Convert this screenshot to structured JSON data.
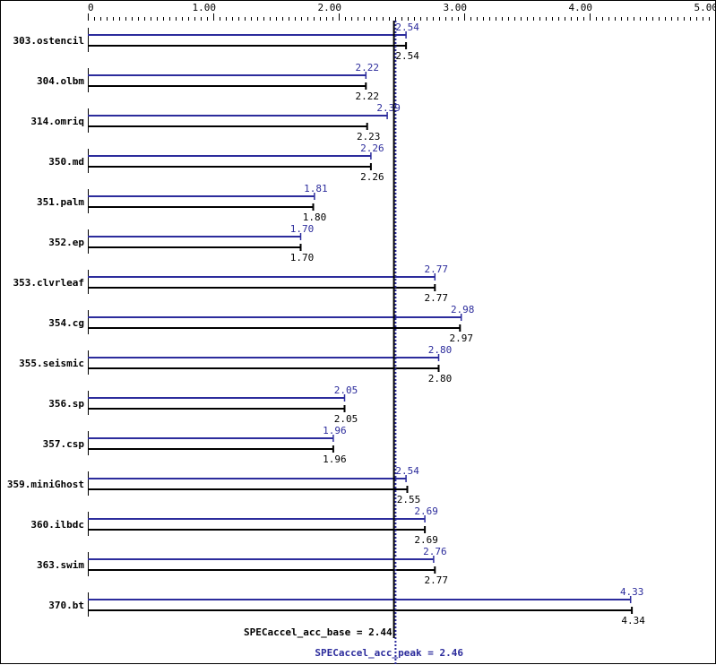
{
  "chart_data": {
    "type": "bar",
    "orientation": "horizontal",
    "title": "",
    "xlabel": "",
    "ylabel": "",
    "xlim": [
      0,
      5.0
    ],
    "x_ticks": [
      "0",
      "1.00",
      "2.00",
      "3.00",
      "4.00",
      "5.00"
    ],
    "x_tick_values": [
      0,
      1,
      2,
      3,
      4,
      5
    ],
    "grid": false,
    "categories": [
      "303.ostencil",
      "304.olbm",
      "314.omriq",
      "350.md",
      "351.palm",
      "352.ep",
      "353.clvrleaf",
      "354.cg",
      "355.seismic",
      "356.sp",
      "357.csp",
      "359.miniGhost",
      "360.ilbdc",
      "363.swim",
      "370.bt"
    ],
    "series": [
      {
        "name": "peak",
        "color": "#2c2c9c",
        "values": [
          2.54,
          2.22,
          2.39,
          2.26,
          1.81,
          1.7,
          2.77,
          2.98,
          2.8,
          2.05,
          1.96,
          2.54,
          2.69,
          2.76,
          4.33
        ],
        "labels": [
          "2.54",
          "2.22",
          "2.39",
          "2.26",
          "1.81",
          "1.70",
          "2.77",
          "2.98",
          "2.80",
          "2.05",
          "1.96",
          "2.54",
          "2.69",
          "2.76",
          "4.33"
        ]
      },
      {
        "name": "base",
        "color": "#000000",
        "values": [
          2.54,
          2.22,
          2.23,
          2.26,
          1.8,
          1.7,
          2.77,
          2.97,
          2.8,
          2.05,
          1.96,
          2.55,
          2.69,
          2.77,
          4.34
        ],
        "labels": [
          "2.54",
          "2.22",
          "2.23",
          "2.26",
          "1.80",
          "1.70",
          "2.77",
          "2.97",
          "2.80",
          "2.05",
          "1.96",
          "2.55",
          "2.69",
          "2.77",
          "4.34"
        ]
      }
    ],
    "reference_lines": [
      {
        "name": "SPECaccel_acc_base",
        "value": 2.44,
        "style": "solid",
        "color": "#000000",
        "label": "SPECaccel_acc_base = 2.44"
      },
      {
        "name": "SPECaccel_acc_peak",
        "value": 2.46,
        "style": "dotted",
        "color": "#2c2c9c",
        "label": "SPECaccel_acc_peak = 2.46"
      }
    ],
    "legend": null
  }
}
